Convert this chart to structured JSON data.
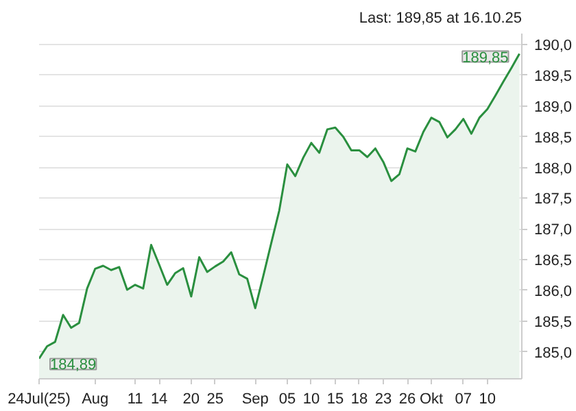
{
  "chart_data": {
    "type": "area",
    "categories": [
      "24Jul(25)",
      null,
      null,
      null,
      null,
      null,
      null,
      "Aug",
      null,
      null,
      null,
      null,
      "11",
      null,
      null,
      "14",
      null,
      null,
      null,
      "20",
      null,
      null,
      "25",
      null,
      null,
      null,
      null,
      "Sep",
      null,
      null,
      null,
      "05",
      null,
      null,
      "10",
      null,
      null,
      "15",
      null,
      null,
      "18",
      null,
      null,
      "23",
      null,
      null,
      "26",
      null,
      null,
      "Okt",
      null,
      null,
      null,
      "07",
      null,
      null,
      "10",
      null,
      null,
      null,
      null
    ],
    "series": [
      {
        "color": "#2a8f3f",
        "values": [
          184.89,
          185.09,
          185.16,
          185.6,
          185.39,
          185.47,
          186.03,
          186.35,
          186.4,
          186.33,
          186.38,
          186.01,
          186.09,
          186.03,
          186.74,
          186.42,
          186.09,
          186.28,
          186.36,
          185.9,
          186.54,
          186.3,
          186.39,
          186.47,
          186.62,
          186.26,
          186.19,
          185.71,
          186.23,
          186.77,
          187.3,
          188.05,
          187.86,
          188.16,
          188.4,
          188.24,
          188.62,
          188.65,
          188.5,
          188.28,
          188.28,
          188.17,
          188.31,
          188.09,
          187.78,
          187.89,
          188.31,
          188.26,
          188.58,
          188.81,
          188.74,
          188.49,
          188.62,
          188.79,
          188.55,
          188.81,
          188.95,
          189.17,
          189.4,
          189.62,
          189.85
        ]
      }
    ],
    "ylim": [
      184.56,
      190.18
    ],
    "yticks": [
      {
        "value": 185.0,
        "label": "185,0"
      },
      {
        "value": 185.5,
        "label": "185,5"
      },
      {
        "value": 186.0,
        "label": "186,0"
      },
      {
        "value": 186.5,
        "label": "186,5"
      },
      {
        "value": 187.0,
        "label": "187,0"
      },
      {
        "value": 187.5,
        "label": "187,5"
      },
      {
        "value": 188.0,
        "label": "188,0"
      },
      {
        "value": 188.5,
        "label": "188,5"
      },
      {
        "value": 189.0,
        "label": "189,0"
      },
      {
        "value": 189.5,
        "label": "189,5"
      },
      {
        "value": 190.0,
        "label": "190,0"
      }
    ],
    "grid": "y",
    "annotations": [
      "Last: 189,85 at 16.10.25",
      "184,89",
      "189,85"
    ]
  }
}
